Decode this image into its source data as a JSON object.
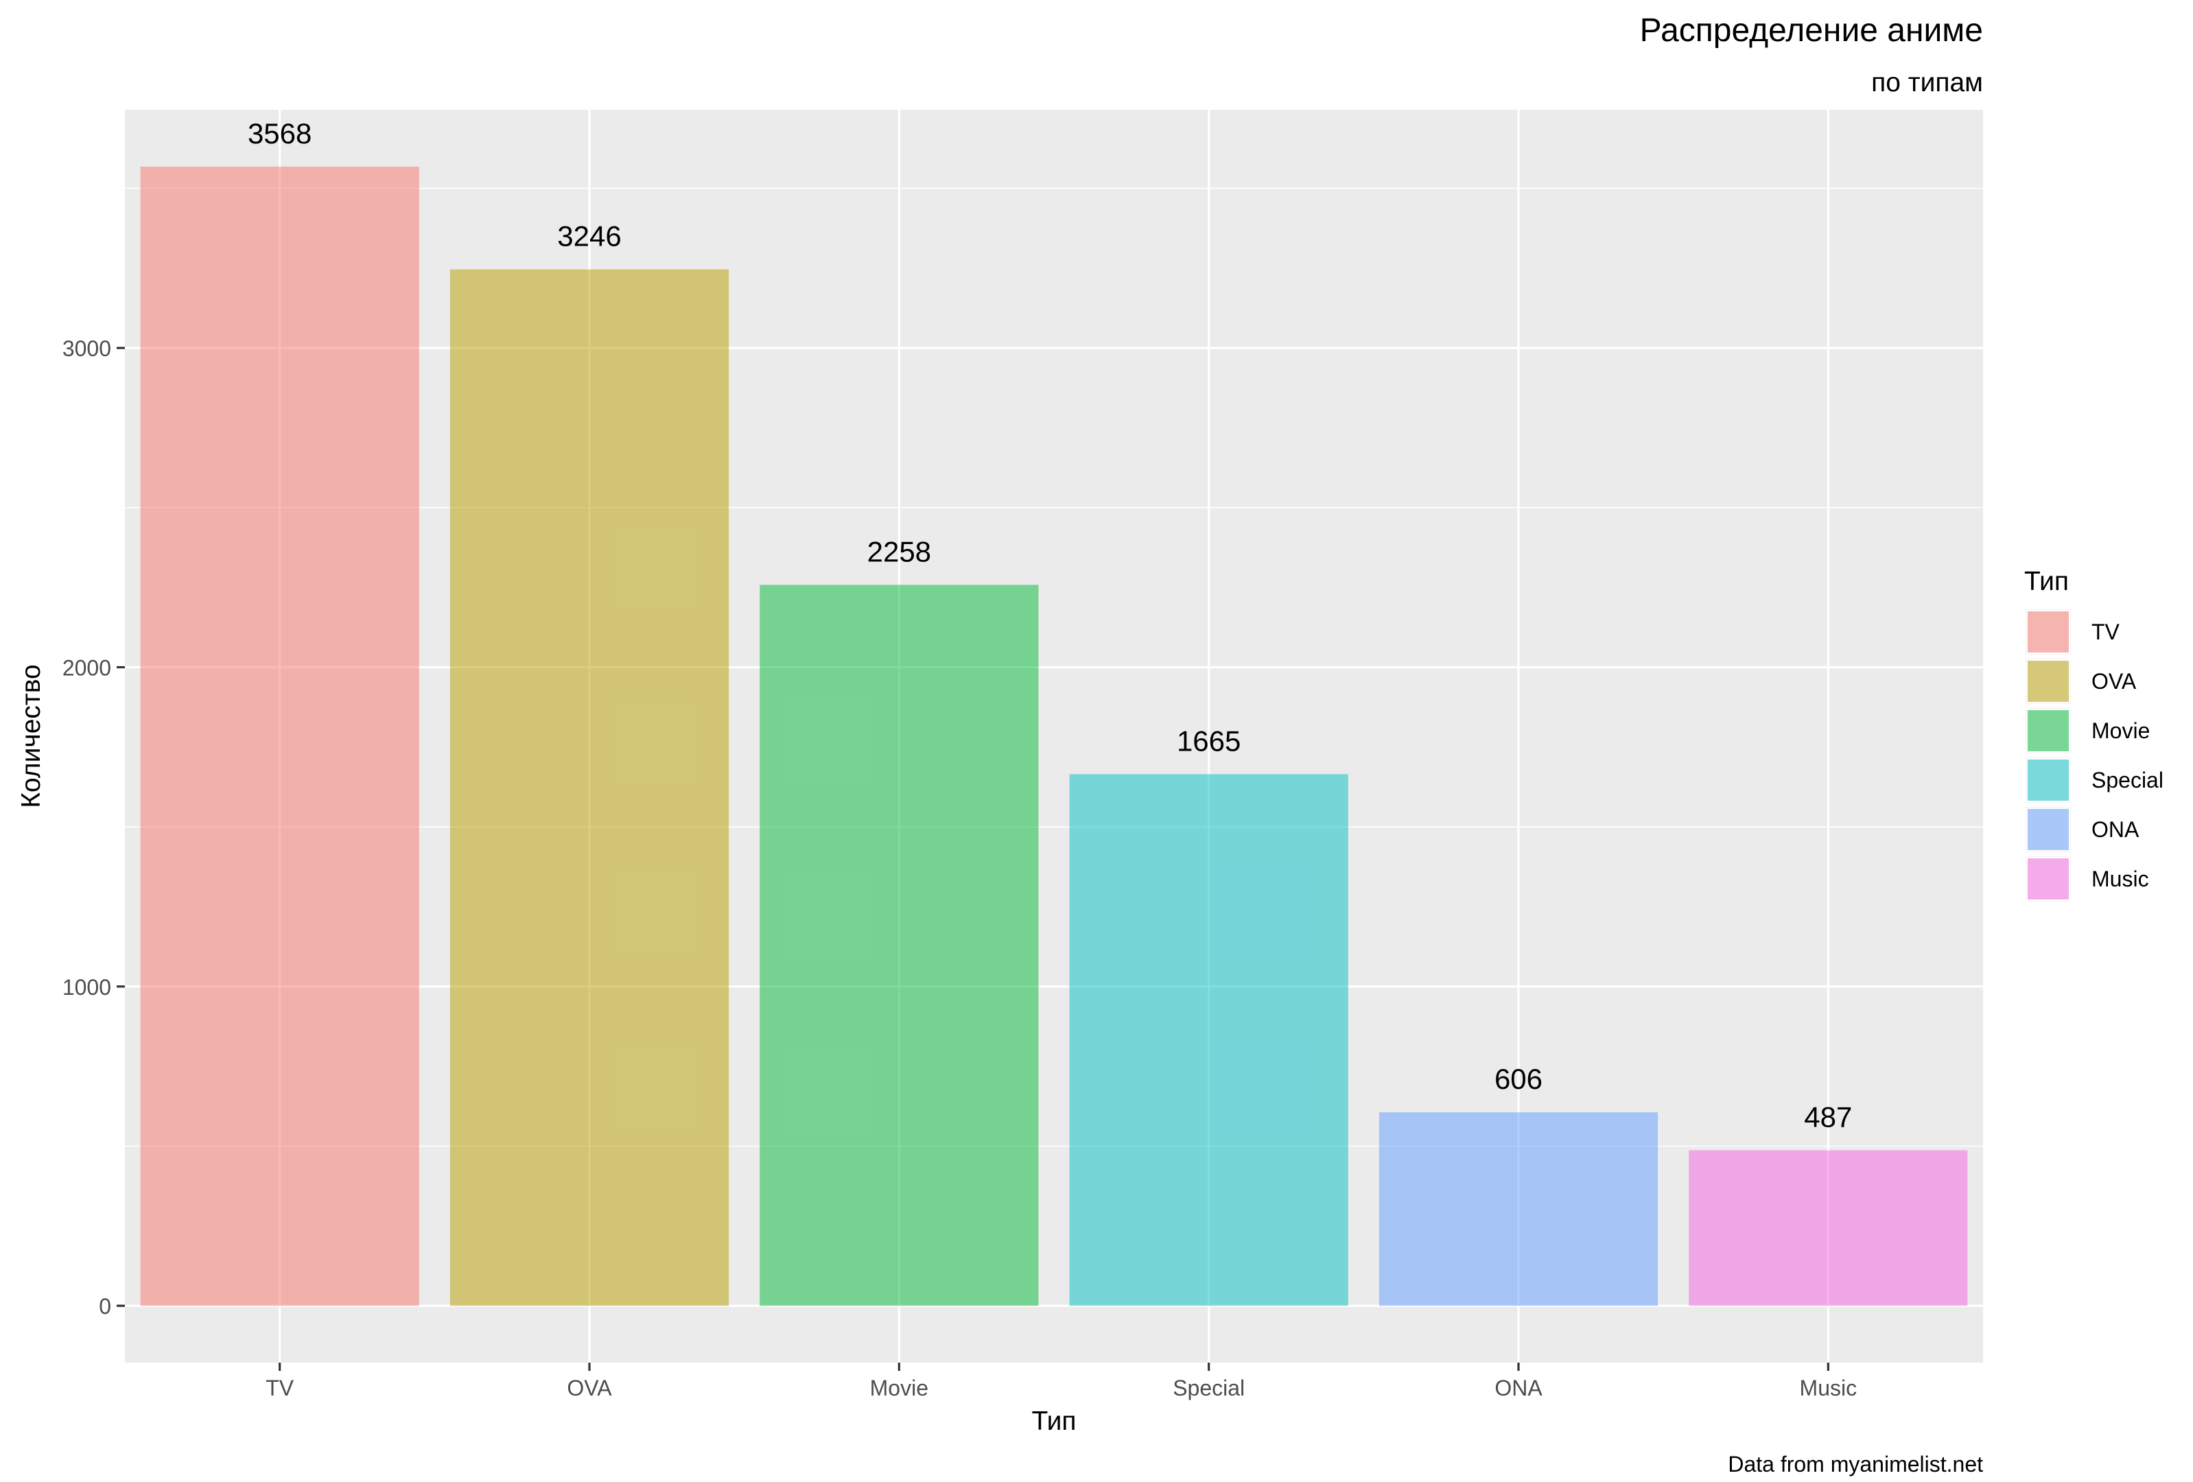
{
  "chart_data": {
    "type": "bar",
    "title": "Распределение аниме",
    "subtitle": "по типам",
    "caption": "Data from myanimelist.net",
    "xlabel": "Тип",
    "ylabel": "Количество",
    "categories": [
      "TV",
      "OVA",
      "Movie",
      "Special",
      "ONA",
      "Music"
    ],
    "values": [
      3568,
      3246,
      2258,
      1665,
      606,
      487
    ],
    "value_labels": [
      "3568",
      "3246",
      "2258",
      "1665",
      "606",
      "487"
    ],
    "colors": [
      "#F8766D",
      "#B79F00",
      "#00BA38",
      "#00BFC4",
      "#619CFF",
      "#F564E3"
    ],
    "y_ticks": [
      0,
      1000,
      2000,
      3000
    ],
    "y_tick_labels": [
      "0",
      "1000",
      "2000",
      "3000"
    ],
    "ylim": [
      -178,
      3746
    ],
    "grid": true,
    "legend": {
      "title": "Тип",
      "placement": "right",
      "items": [
        "TV",
        "OVA",
        "Movie",
        "Special",
        "ONA",
        "Music"
      ]
    }
  }
}
